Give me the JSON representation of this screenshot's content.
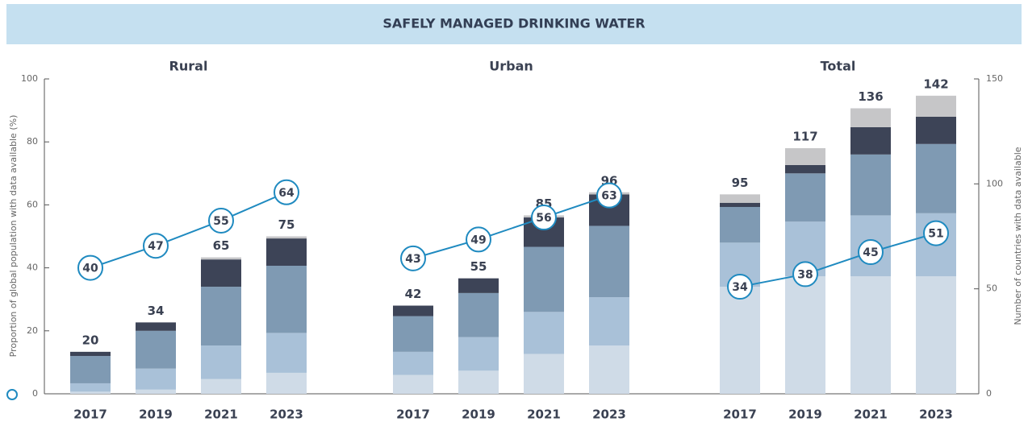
{
  "chart_data": {
    "type": "bar",
    "title": "SAFELY MANAGED DRINKING WATER",
    "ylabel": "Proportion of global population with data available (%)",
    "y2label": "Number of countries with data available",
    "ylim": [
      0,
      100
    ],
    "yticks": [
      0,
      20,
      40,
      60,
      80,
      100
    ],
    "y2lim": [
      0,
      150
    ],
    "y2ticks": [
      0,
      50,
      100,
      150
    ],
    "categories": [
      "2017",
      "2019",
      "2021",
      "2023"
    ],
    "line_color": "#1f8ac0",
    "panels": [
      {
        "name": "Rural",
        "series": [
          {
            "color": "#cfdbe7",
            "axis": "y2",
            "values": [
              1,
              2,
              7,
              10
            ]
          },
          {
            "color": "#a9c1d8",
            "axis": "y2",
            "values": [
              4,
              10,
              16,
              19
            ]
          },
          {
            "color": "#7f9ab3",
            "axis": "y2",
            "values": [
              13,
              18,
              28,
              32
            ]
          },
          {
            "color": "#3d4457",
            "axis": "y2",
            "values": [
              2,
              4,
              13,
              13
            ]
          },
          {
            "color": "#c6c6c8",
            "axis": "y2",
            "values": [
              0,
              0,
              1,
              1
            ]
          }
        ],
        "totals": [
          20,
          34,
          65,
          75
        ],
        "line": [
          40,
          47,
          55,
          64
        ]
      },
      {
        "name": "Urban",
        "series": [
          {
            "color": "#cfdbe7",
            "axis": "y2",
            "values": [
              9,
              11,
              19,
              23
            ]
          },
          {
            "color": "#a9c1d8",
            "axis": "y2",
            "values": [
              11,
              16,
              20,
              23
            ]
          },
          {
            "color": "#7f9ab3",
            "axis": "y2",
            "values": [
              17,
              21,
              31,
              34
            ]
          },
          {
            "color": "#3d4457",
            "axis": "y2",
            "values": [
              5,
              7,
              14,
              15
            ]
          },
          {
            "color": "#c6c6c8",
            "axis": "y2",
            "values": [
              0,
              0,
              1,
              1
            ]
          }
        ],
        "totals": [
          42,
          55,
          85,
          96
        ],
        "line": [
          43,
          49,
          56,
          63
        ]
      },
      {
        "name": "Total",
        "series": [
          {
            "color": "#cfdbe7",
            "axis": "y2",
            "values": [
              51,
              56,
              56,
              56
            ]
          },
          {
            "color": "#a9c1d8",
            "axis": "y2",
            "values": [
              21,
              26,
              29,
              30
            ]
          },
          {
            "color": "#7f9ab3",
            "axis": "y2",
            "values": [
              17,
              23,
              29,
              33
            ]
          },
          {
            "color": "#3d4457",
            "axis": "y2",
            "values": [
              2,
              4,
              13,
              13
            ]
          },
          {
            "color": "#c6c6c8",
            "axis": "y2",
            "values": [
              4,
              8,
              9,
              10
            ]
          }
        ],
        "totals": [
          95,
          117,
          136,
          142
        ],
        "line": [
          34,
          38,
          45,
          51
        ]
      }
    ]
  }
}
